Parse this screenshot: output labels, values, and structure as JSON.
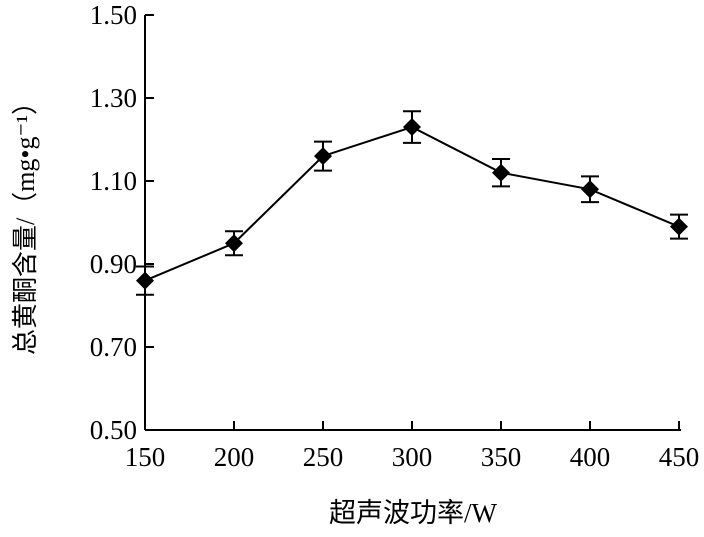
{
  "chart_data": {
    "type": "line",
    "title": "",
    "xlabel": "超声波功率/W",
    "ylabel": "总黄酮含量/（mg•g⁻¹）",
    "x": [
      150,
      200,
      250,
      300,
      350,
      400,
      450
    ],
    "series": [
      {
        "name": "总黄酮含量",
        "values": [
          0.86,
          0.95,
          1.16,
          1.23,
          1.12,
          1.08,
          0.99
        ],
        "errors": [
          0.034,
          0.029,
          0.035,
          0.038,
          0.033,
          0.031,
          0.029
        ],
        "marker": "diamond",
        "color": "#000000"
      }
    ],
    "xlim": [
      150,
      450
    ],
    "ylim": [
      0.5,
      1.5
    ],
    "xticks": [
      "150",
      "200",
      "250",
      "300",
      "350",
      "400",
      "450"
    ],
    "yticks": [
      "0.50",
      "0.70",
      "0.90",
      "1.10",
      "1.30",
      "1.50"
    ],
    "grid": false,
    "legend": "none"
  }
}
